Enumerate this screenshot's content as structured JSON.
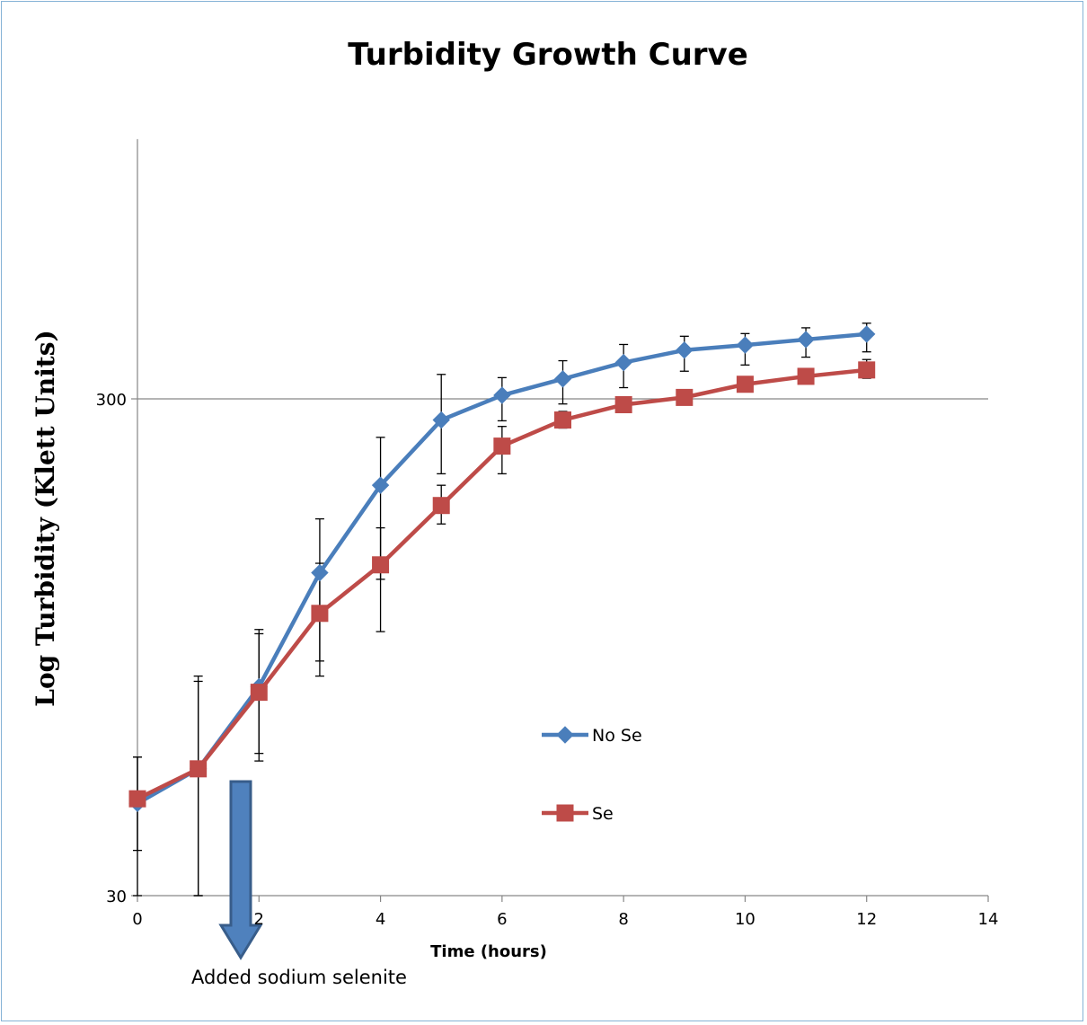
{
  "chart_data": {
    "type": "line",
    "title": "Turbidity Growth Curve",
    "xlabel": "Time (hours)",
    "ylabel": "Log Turbidity (Klett Units)",
    "xlim": [
      0,
      14
    ],
    "xticks": [
      0,
      2,
      4,
      6,
      8,
      10,
      12,
      14
    ],
    "ylim": [
      30,
      1000
    ],
    "yscale": "log",
    "yticks": [
      30,
      300
    ],
    "grid": "horizontal at 300",
    "legend_position": "inside-right",
    "series": [
      {
        "name": "No Se",
        "color": "#4a7ebb",
        "marker": "diamond",
        "x": [
          0,
          1,
          2,
          3,
          4,
          5,
          6,
          7,
          8,
          9,
          10,
          11,
          12
        ],
        "y": [
          46,
          54,
          79,
          134,
          201,
          272,
          305,
          329,
          355,
          376,
          385,
          395,
          405
        ],
        "err_low": [
          37,
          30,
          58,
          89,
          130,
          212,
          271,
          293,
          316,
          341,
          351,
          364,
          373
        ],
        "err_high": [
          57,
          83,
          103,
          172,
          251,
          336,
          331,
          358,
          386,
          401,
          406,
          417,
          426
        ]
      },
      {
        "name": "Se",
        "color": "#be4b48",
        "marker": "square",
        "x": [
          0,
          1,
          2,
          3,
          4,
          5,
          6,
          7,
          8,
          9,
          10,
          11,
          12
        ],
        "y": [
          47,
          54,
          77,
          111,
          139,
          183,
          241,
          272,
          292,
          302,
          321,
          333,
          343
        ],
        "err_low": [
          30,
          30,
          56,
          83,
          102,
          168,
          212,
          262,
          292,
          302,
          321,
          324,
          330
        ],
        "err_high": [
          57,
          81,
          101,
          140,
          165,
          201,
          264,
          283,
          292,
          302,
          321,
          345,
          360
        ]
      }
    ],
    "annotations": [
      {
        "text": "Added sodium selenite",
        "x": 1.7,
        "shape": "down-arrow",
        "color": "#4f81bd"
      }
    ]
  }
}
